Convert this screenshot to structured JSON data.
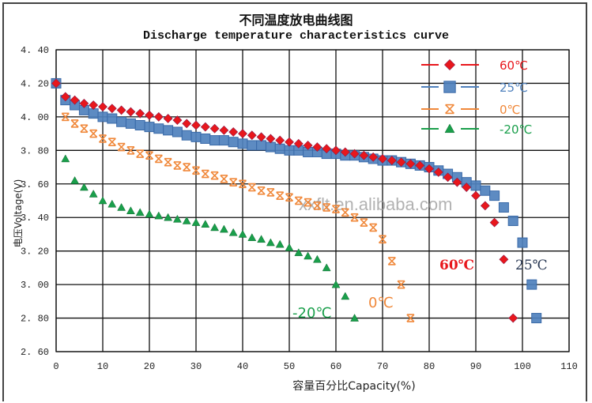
{
  "header": {
    "title_cn": "不同温度放电曲线图",
    "title_en": "Discharge temperature characteristics curve"
  },
  "watermark": "xxflt.en.alibaba.com",
  "chart_data": {
    "type": "scatter",
    "title": "不同温度放电曲线图 / Discharge temperature characteristics curve",
    "xlabel": "容量百分比Capacity(%)",
    "ylabel": "电压Voltage(V)",
    "xlim": [
      0,
      110
    ],
    "ylim": [
      2.6,
      4.4
    ],
    "xticks": [
      0,
      10,
      20,
      30,
      40,
      50,
      60,
      70,
      80,
      90,
      100,
      110
    ],
    "yticks": [
      "2.60",
      "2.80",
      "3.00",
      "3.20",
      "3.40",
      "3.60",
      "3.80",
      "4.00",
      "4.20",
      "4.40"
    ],
    "grid": true,
    "legend_position": "top-right",
    "series": [
      {
        "name": "60℃",
        "color": "#e8171c",
        "marker": "diamond",
        "x": [
          0,
          2,
          4,
          6,
          8,
          10,
          12,
          14,
          16,
          18,
          20,
          22,
          24,
          26,
          28,
          30,
          32,
          34,
          36,
          38,
          40,
          42,
          44,
          46,
          48,
          50,
          52,
          54,
          56,
          58,
          60,
          62,
          64,
          66,
          68,
          70,
          72,
          74,
          76,
          78,
          80,
          82,
          84,
          86,
          88,
          90,
          92,
          94,
          96,
          98
        ],
        "y": [
          4.2,
          4.12,
          4.1,
          4.08,
          4.07,
          4.06,
          4.05,
          4.04,
          4.03,
          4.02,
          4.01,
          4.0,
          3.99,
          3.98,
          3.96,
          3.95,
          3.94,
          3.93,
          3.92,
          3.91,
          3.9,
          3.89,
          3.88,
          3.87,
          3.86,
          3.85,
          3.84,
          3.83,
          3.82,
          3.81,
          3.8,
          3.79,
          3.78,
          3.77,
          3.76,
          3.75,
          3.74,
          3.73,
          3.72,
          3.71,
          3.69,
          3.67,
          3.64,
          3.61,
          3.58,
          3.53,
          3.47,
          3.37,
          3.15,
          2.8
        ]
      },
      {
        "name": "25℃",
        "color": "#4f81bd",
        "marker": "square",
        "x": [
          0,
          2,
          4,
          6,
          8,
          10,
          12,
          14,
          16,
          18,
          20,
          22,
          24,
          26,
          28,
          30,
          32,
          34,
          36,
          38,
          40,
          42,
          44,
          46,
          48,
          50,
          52,
          54,
          56,
          58,
          60,
          62,
          64,
          66,
          68,
          70,
          72,
          74,
          76,
          78,
          80,
          82,
          84,
          86,
          88,
          90,
          92,
          94,
          96,
          98,
          100,
          102,
          103
        ],
        "y": [
          4.2,
          4.1,
          4.07,
          4.04,
          4.02,
          4.0,
          3.99,
          3.97,
          3.96,
          3.95,
          3.94,
          3.93,
          3.92,
          3.91,
          3.89,
          3.88,
          3.87,
          3.86,
          3.86,
          3.85,
          3.84,
          3.83,
          3.83,
          3.82,
          3.81,
          3.8,
          3.8,
          3.79,
          3.79,
          3.78,
          3.78,
          3.77,
          3.77,
          3.76,
          3.75,
          3.74,
          3.74,
          3.73,
          3.72,
          3.71,
          3.7,
          3.68,
          3.66,
          3.64,
          3.61,
          3.59,
          3.56,
          3.53,
          3.46,
          3.38,
          3.25,
          3.0,
          2.8
        ]
      },
      {
        "name": "0℃",
        "color": "#f0883a",
        "marker": "asterisk",
        "x": [
          0,
          2,
          4,
          6,
          8,
          10,
          12,
          14,
          16,
          18,
          20,
          22,
          24,
          26,
          28,
          30,
          32,
          34,
          36,
          38,
          40,
          42,
          44,
          46,
          48,
          50,
          52,
          54,
          56,
          58,
          60,
          62,
          64,
          66,
          68,
          70,
          72,
          74,
          76
        ],
        "y": [
          4.2,
          4.0,
          3.96,
          3.93,
          3.9,
          3.87,
          3.85,
          3.82,
          3.8,
          3.78,
          3.77,
          3.75,
          3.73,
          3.71,
          3.7,
          3.68,
          3.66,
          3.65,
          3.63,
          3.61,
          3.6,
          3.58,
          3.56,
          3.55,
          3.53,
          3.52,
          3.5,
          3.49,
          3.47,
          3.46,
          3.45,
          3.43,
          3.4,
          3.37,
          3.34,
          3.27,
          3.14,
          3.0,
          2.8
        ]
      },
      {
        "name": "-20℃",
        "color": "#1a9f4b",
        "marker": "triangle",
        "x": [
          2,
          4,
          6,
          8,
          10,
          12,
          14,
          16,
          18,
          20,
          22,
          24,
          26,
          28,
          30,
          32,
          34,
          36,
          38,
          40,
          42,
          44,
          46,
          48,
          50,
          52,
          54,
          56,
          58,
          60,
          62,
          64
        ],
        "y": [
          3.75,
          3.62,
          3.58,
          3.54,
          3.5,
          3.48,
          3.46,
          3.44,
          3.43,
          3.42,
          3.41,
          3.4,
          3.39,
          3.38,
          3.37,
          3.36,
          3.34,
          3.33,
          3.31,
          3.3,
          3.28,
          3.27,
          3.25,
          3.24,
          3.22,
          3.19,
          3.17,
          3.15,
          3.1,
          3.0,
          2.93,
          2.8
        ]
      }
    ],
    "annotations": [
      {
        "text": "60℃",
        "x": 88,
        "y": 3.12,
        "color": "#e8171c"
      },
      {
        "text": "25℃",
        "x": 99,
        "y": 3.12,
        "color": "#2b3a55"
      },
      {
        "text": "0℃",
        "x": 70,
        "y": 2.86,
        "color": "#f0883a"
      },
      {
        "text": "-20℃",
        "x": 55,
        "y": 2.82,
        "color": "#1a9f4b"
      }
    ]
  }
}
